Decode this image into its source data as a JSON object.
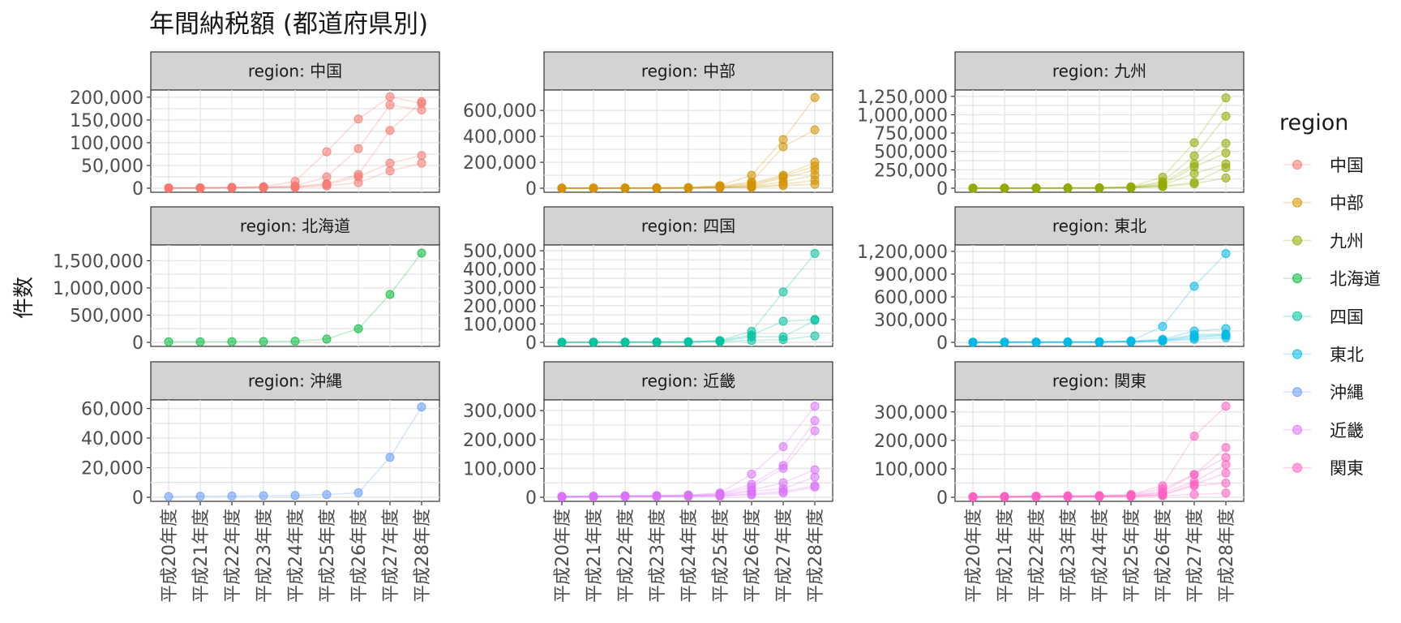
{
  "chart_data": {
    "type": "line",
    "title": "年間納税額 (都道府県別)",
    "ylabel": "件数",
    "xlabel": "",
    "strip_prefix": "region: ",
    "x": [
      "平成20年度",
      "平成21年度",
      "平成22年度",
      "平成23年度",
      "平成24年度",
      "平成25年度",
      "平成26年度",
      "平成27年度",
      "平成28年度"
    ],
    "grid": true,
    "legend": {
      "title": "region",
      "position": "right",
      "entries": [
        "中国",
        "中部",
        "九州",
        "北海道",
        "四国",
        "東北",
        "沖縄",
        "近畿",
        "関東"
      ]
    },
    "colors": {
      "中国": "#F8766D",
      "中部": "#D39200",
      "九州": "#93AA00",
      "北海道": "#00BA38",
      "四国": "#00C19F",
      "東北": "#00B9E3",
      "沖縄": "#619CFF",
      "近畿": "#DB72FB",
      "関東": "#FF61C3"
    },
    "panels": [
      {
        "region": "中国",
        "ylim": [
          0,
          205000
        ],
        "yticks": [
          0,
          50000,
          100000,
          150000,
          200000
        ],
        "series": [
          [
            300,
            400,
            700,
            1000,
            2500,
            8000,
            25000,
            55000,
            72000
          ],
          [
            200,
            300,
            500,
            900,
            1500,
            5000,
            12000,
            38000,
            55000
          ],
          [
            500,
            800,
            1500,
            2500,
            5000,
            25000,
            87000,
            183000,
            172000
          ],
          [
            600,
            900,
            2000,
            3500,
            15000,
            80000,
            152000,
            201000,
            186000
          ],
          [
            400,
            500,
            1200,
            2000,
            3000,
            10000,
            30000,
            127000,
            190000
          ]
        ]
      },
      {
        "region": "中部",
        "ylim": [
          0,
          720000
        ],
        "yticks": [
          0,
          200000,
          400000,
          600000
        ],
        "series": [
          [
            1000,
            1200,
            2000,
            3000,
            5000,
            20000,
            100000,
            375000,
            700000
          ],
          [
            800,
            1000,
            1500,
            2500,
            4000,
            15000,
            50000,
            320000,
            450000
          ],
          [
            500,
            700,
            1000,
            1500,
            3000,
            10000,
            40000,
            100000,
            200000
          ],
          [
            400,
            600,
            900,
            1200,
            2500,
            8000,
            30000,
            90000,
            170000
          ],
          [
            300,
            500,
            800,
            1000,
            2000,
            6000,
            20000,
            80000,
            140000
          ],
          [
            200,
            400,
            600,
            900,
            1500,
            5000,
            15000,
            50000,
            100000
          ],
          [
            100,
            300,
            500,
            800,
            1200,
            4000,
            10000,
            30000,
            60000
          ],
          [
            100,
            200,
            400,
            600,
            1000,
            3000,
            5000,
            20000,
            30000
          ]
        ]
      },
      {
        "region": "九州",
        "ylim": [
          0,
          1270000
        ],
        "yticks": [
          0,
          250000,
          500000,
          750000,
          1000000,
          1250000
        ],
        "series": [
          [
            1000,
            2000,
            3000,
            4000,
            6000,
            20000,
            150000,
            620000,
            1230000
          ],
          [
            800,
            1500,
            2500,
            3500,
            5000,
            15000,
            90000,
            440000,
            980000
          ],
          [
            600,
            1000,
            2000,
            3000,
            4000,
            12000,
            70000,
            330000,
            610000
          ],
          [
            500,
            900,
            1500,
            2500,
            3500,
            10000,
            50000,
            290000,
            480000
          ],
          [
            400,
            800,
            1200,
            2000,
            3000,
            8000,
            40000,
            200000,
            330000
          ],
          [
            300,
            600,
            1000,
            1500,
            2500,
            6000,
            30000,
            80000,
            280000
          ],
          [
            200,
            400,
            800,
            1000,
            2000,
            5000,
            20000,
            60000,
            140000
          ]
        ]
      },
      {
        "region": "北海道",
        "ylim": [
          0,
          1700000
        ],
        "yticks": [
          0,
          500000,
          1000000,
          1500000
        ],
        "series": [
          [
            10000,
            10000,
            12000,
            15000,
            20000,
            60000,
            250000,
            880000,
            1640000
          ]
        ]
      },
      {
        "region": "四国",
        "ylim": [
          0,
          505000
        ],
        "yticks": [
          0,
          100000,
          200000,
          300000,
          400000,
          500000
        ],
        "series": [
          [
            500,
            800,
            1000,
            2000,
            3000,
            10000,
            60000,
            275000,
            485000
          ],
          [
            400,
            600,
            900,
            1500,
            2500,
            8000,
            40000,
            115000,
            125000
          ],
          [
            300,
            500,
            800,
            1200,
            2000,
            6000,
            30000,
            30000,
            120000
          ],
          [
            200,
            400,
            600,
            1000,
            1500,
            4000,
            10000,
            15000,
            35000
          ]
        ]
      },
      {
        "region": "東北",
        "ylim": [
          0,
          1220000
        ],
        "yticks": [
          0,
          300000,
          600000,
          900000,
          1200000
        ],
        "series": [
          [
            2000,
            3000,
            4000,
            5000,
            8000,
            20000,
            210000,
            740000,
            1170000
          ],
          [
            1500,
            2500,
            3500,
            4000,
            6000,
            15000,
            40000,
            150000,
            180000
          ],
          [
            1000,
            2000,
            3000,
            3500,
            5000,
            12000,
            30000,
            100000,
            110000
          ],
          [
            800,
            1500,
            2500,
            3000,
            4000,
            10000,
            25000,
            80000,
            100000
          ],
          [
            600,
            1000,
            2000,
            2500,
            3000,
            8000,
            20000,
            60000,
            90000
          ],
          [
            400,
            800,
            1500,
            2000,
            2500,
            6000,
            15000,
            40000,
            60000
          ]
        ]
      },
      {
        "region": "沖縄",
        "ylim": [
          0,
          62500
        ],
        "yticks": [
          0,
          20000,
          40000,
          60000
        ],
        "series": [
          [
            500,
            700,
            800,
            1000,
            1200,
            1800,
            3000,
            27000,
            61000
          ]
        ]
      },
      {
        "region": "近畿",
        "ylim": [
          0,
          320000
        ],
        "yticks": [
          0,
          100000,
          200000,
          300000
        ],
        "series": [
          [
            3000,
            4000,
            5000,
            6000,
            8000,
            15000,
            80000,
            175000,
            315000
          ],
          [
            2500,
            3500,
            4500,
            5000,
            7000,
            12000,
            45000,
            110000,
            265000
          ],
          [
            2000,
            3000,
            4000,
            4500,
            6000,
            10000,
            35000,
            100000,
            230000
          ],
          [
            1500,
            2500,
            3500,
            4000,
            5000,
            8000,
            25000,
            50000,
            95000
          ],
          [
            1000,
            2000,
            3000,
            3500,
            4000,
            6000,
            20000,
            30000,
            70000
          ],
          [
            800,
            1500,
            2500,
            3000,
            3500,
            5000,
            12000,
            20000,
            40000
          ],
          [
            500,
            1000,
            2000,
            2500,
            3000,
            4000,
            8000,
            15000,
            35000
          ]
        ]
      },
      {
        "region": "関東",
        "ylim": [
          0,
          325000
        ],
        "yticks": [
          0,
          100000,
          200000,
          300000
        ],
        "series": [
          [
            2000,
            3000,
            4000,
            5000,
            6000,
            10000,
            40000,
            215000,
            320000
          ],
          [
            1500,
            2500,
            3500,
            4000,
            5000,
            8000,
            30000,
            80000,
            175000
          ],
          [
            1000,
            2000,
            3000,
            3500,
            4000,
            6000,
            20000,
            80000,
            140000
          ],
          [
            800,
            1500,
            2500,
            3000,
            3500,
            5000,
            15000,
            55000,
            115000
          ],
          [
            600,
            1000,
            2000,
            2500,
            3000,
            4000,
            10000,
            45000,
            85000
          ],
          [
            400,
            800,
            1500,
            2000,
            2500,
            3000,
            8000,
            40000,
            50000
          ],
          [
            200,
            500,
            1000,
            1500,
            2000,
            2500,
            5000,
            10000,
            15000
          ]
        ]
      }
    ]
  }
}
